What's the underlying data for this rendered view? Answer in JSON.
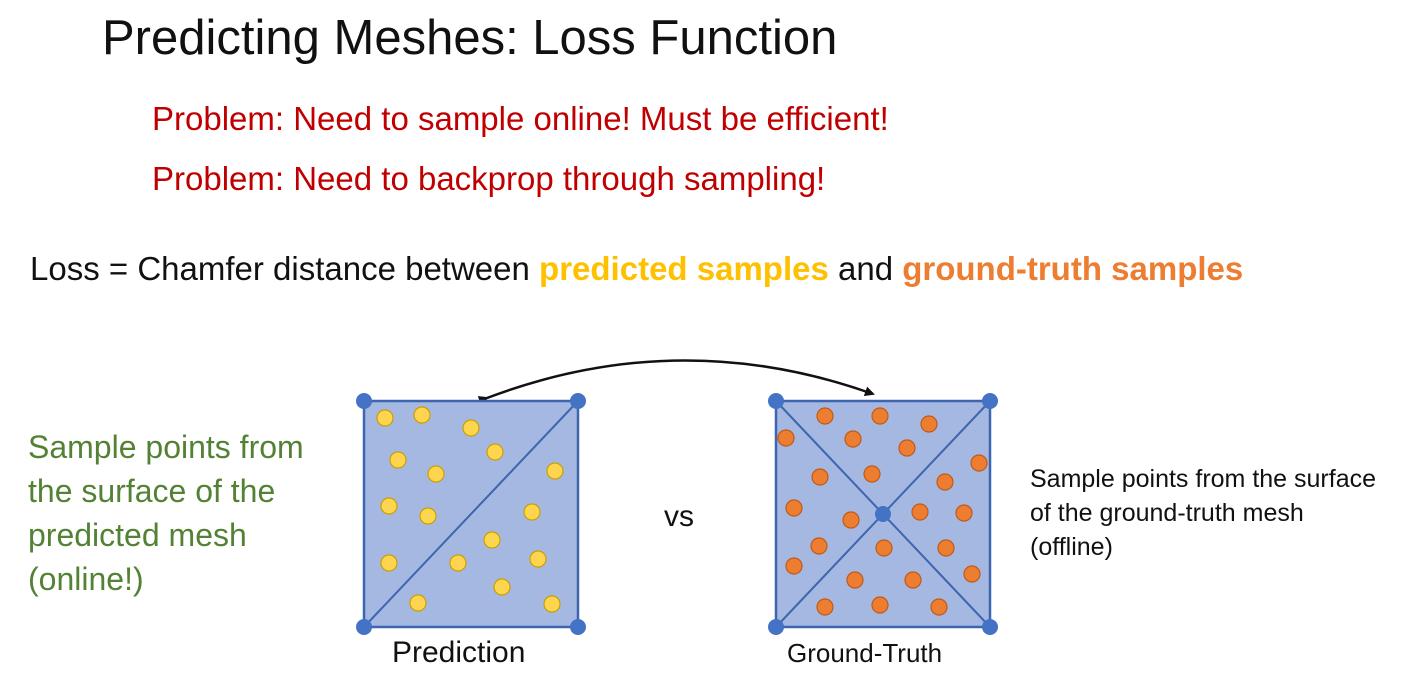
{
  "title": "Predicting Meshes: Loss Function",
  "problems": [
    "Problem: Need to sample online! Must be efficient!",
    "Problem: Need to backprop through sampling!"
  ],
  "loss": {
    "prefix": "Loss = Chamfer distance between ",
    "predicted": "predicted samples",
    "and": " and ",
    "ground_truth": "ground-truth samples"
  },
  "left_note": "Sample points from the surface of the predicted mesh (online!)",
  "right_note": "Sample points from the surface of the ground-truth mesh (offline)",
  "vs": "vs",
  "prediction_label": "Prediction",
  "ground_truth_label": "Ground-Truth",
  "colors": {
    "mesh_fill": "#a4b8e2",
    "mesh_edge": "#3f64b0",
    "vertex": "#4472c4",
    "predicted_sample": "#ffd54f",
    "ground_truth_sample": "#ed7d31",
    "problem_text": "#c00000",
    "note_text": "#548235"
  }
}
